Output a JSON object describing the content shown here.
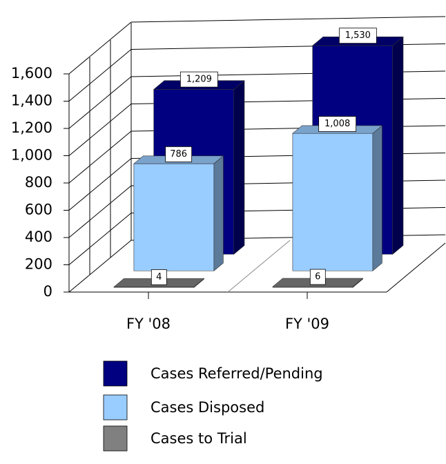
{
  "chart_data": {
    "type": "bar3d",
    "categories": [
      "FY '08",
      "FY '09"
    ],
    "series": [
      {
        "name": "Cases Referred/Pending",
        "color": "#000080",
        "values": [
          1209,
          1530
        ],
        "value_labels": [
          "1,209",
          "1,530"
        ]
      },
      {
        "name": "Cases Disposed",
        "color": "#99ccff",
        "values": [
          786,
          1008
        ],
        "value_labels": [
          "786",
          "1,008"
        ]
      },
      {
        "name": "Cases to Trial",
        "color": "#808080",
        "values": [
          4,
          6
        ],
        "value_labels": [
          "4",
          "6"
        ]
      }
    ],
    "ylim": [
      0,
      1600
    ],
    "yticks": [
      0,
      200,
      400,
      600,
      800,
      {
        "value": 1000,
        "label": "1,000"
      },
      {
        "value": 1200,
        "label": "1,200"
      },
      {
        "value": 1400,
        "label": "1,400"
      },
      {
        "value": 1600,
        "label": "1,600"
      }
    ],
    "grid": true,
    "legend": "bottom"
  }
}
